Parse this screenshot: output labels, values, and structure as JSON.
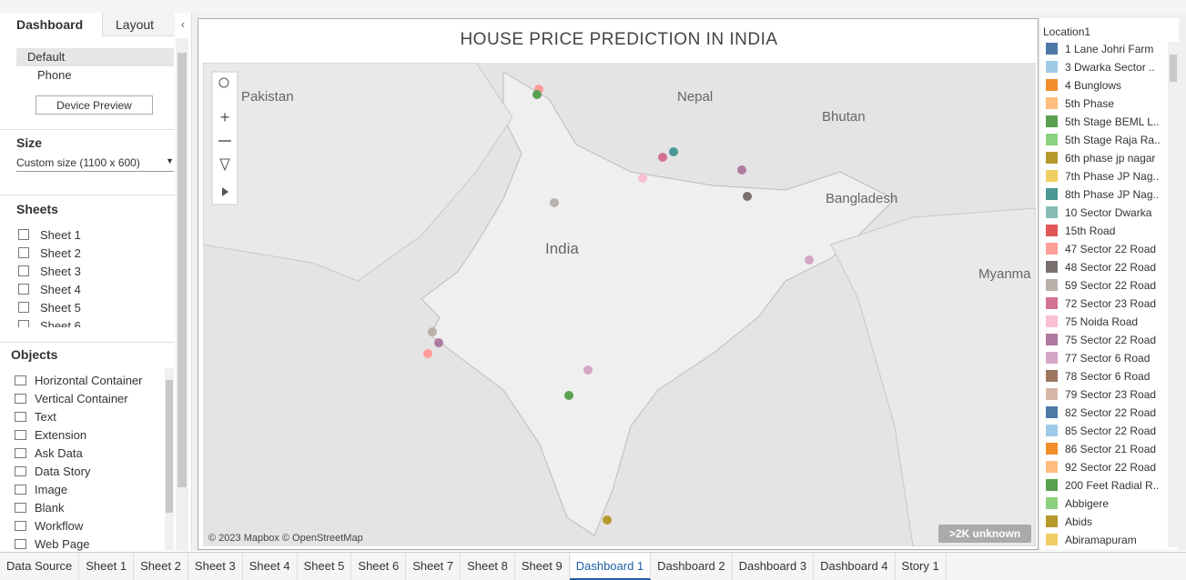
{
  "left_panel": {
    "tabs": [
      "Dashboard",
      "Layout"
    ],
    "devices": [
      "Default",
      "Phone"
    ],
    "device_preview": "Device Preview",
    "size_heading": "Size",
    "size_value": "Custom size (1100 x 600)",
    "sheets_heading": "Sheets",
    "sheets": [
      "Sheet 1",
      "Sheet 2",
      "Sheet 3",
      "Sheet 4",
      "Sheet 5",
      "Sheet 6"
    ],
    "objects_heading": "Objects",
    "objects": [
      "Horizontal Container",
      "Vertical Container",
      "Text",
      "Extension",
      "Ask Data",
      "Data Story",
      "Image",
      "Blank",
      "Workflow",
      "Web Page"
    ]
  },
  "dashboard": {
    "title": "HOUSE PRICE PREDICTION IN INDIA",
    "map_labels": [
      "Pakistan",
      "Nepal",
      "Bhutan",
      "Bangladesh",
      "India",
      "Myanma"
    ],
    "attribution": "© 2023 Mapbox © OpenStreetMap",
    "unknown_badge": ">2K unknown"
  },
  "legend": {
    "title": "Location1",
    "items": [
      {
        "label": "1 Lane Johri Farm",
        "color": "#4e79a7"
      },
      {
        "label": "3 Dwarka Sector ..",
        "color": "#a0cbe8"
      },
      {
        "label": "4 Bunglows",
        "color": "#f28e2b"
      },
      {
        "label": "5th Phase",
        "color": "#ffbe7d"
      },
      {
        "label": "5th Stage BEML L..",
        "color": "#59a14f"
      },
      {
        "label": "5th Stage Raja Ra..",
        "color": "#8cd17d"
      },
      {
        "label": "6th phase jp nagar",
        "color": "#b6992d"
      },
      {
        "label": "7th Phase JP Nag..",
        "color": "#f1ce63"
      },
      {
        "label": "8th Phase JP Nag..",
        "color": "#499894"
      },
      {
        "label": "10 Sector Dwarka",
        "color": "#86bcb6"
      },
      {
        "label": "15th Road",
        "color": "#e15759"
      },
      {
        "label": "47 Sector 22 Road",
        "color": "#ff9d9a"
      },
      {
        "label": "48 Sector 22 Road",
        "color": "#79706e"
      },
      {
        "label": "59 Sector 22 Road",
        "color": "#bab0ac"
      },
      {
        "label": "72 Sector 23 Road",
        "color": "#d37295"
      },
      {
        "label": "75 Noida Road",
        "color": "#fabfd2"
      },
      {
        "label": "75 Sector 22 Road",
        "color": "#b07aa1"
      },
      {
        "label": "77 Sector 6 Road",
        "color": "#d4a6c8"
      },
      {
        "label": "78 Sector 6 Road",
        "color": "#9d7660"
      },
      {
        "label": "79 Sector 23 Road",
        "color": "#d7b5a6"
      },
      {
        "label": "82 Sector 22 Road",
        "color": "#4e79a7"
      },
      {
        "label": "85 Sector 22 Road",
        "color": "#a0cbe8"
      },
      {
        "label": "86 Sector 21 Road",
        "color": "#f28e2b"
      },
      {
        "label": "92 Sector 22 Road",
        "color": "#ffbe7d"
      },
      {
        "label": "200 Feet Radial R..",
        "color": "#59a14f"
      },
      {
        "label": "Abbigere",
        "color": "#8cd17d"
      },
      {
        "label": "Abids",
        "color": "#b6992d"
      },
      {
        "label": "Abiramapuram",
        "color": "#f1ce63"
      }
    ]
  },
  "bottom_tabs": [
    {
      "label": "Data Source"
    },
    {
      "label": "Sheet 1"
    },
    {
      "label": "Sheet 2"
    },
    {
      "label": "Sheet 3"
    },
    {
      "label": "Sheet 4"
    },
    {
      "label": "Sheet 5"
    },
    {
      "label": "Sheet 6"
    },
    {
      "label": "Sheet 7"
    },
    {
      "label": "Sheet 8"
    },
    {
      "label": "Sheet 9"
    },
    {
      "label": "Dashboard 1",
      "active": true
    },
    {
      "label": "Dashboard 2"
    },
    {
      "label": "Dashboard 3"
    },
    {
      "label": "Dashboard 4"
    },
    {
      "label": "Story 1"
    }
  ]
}
